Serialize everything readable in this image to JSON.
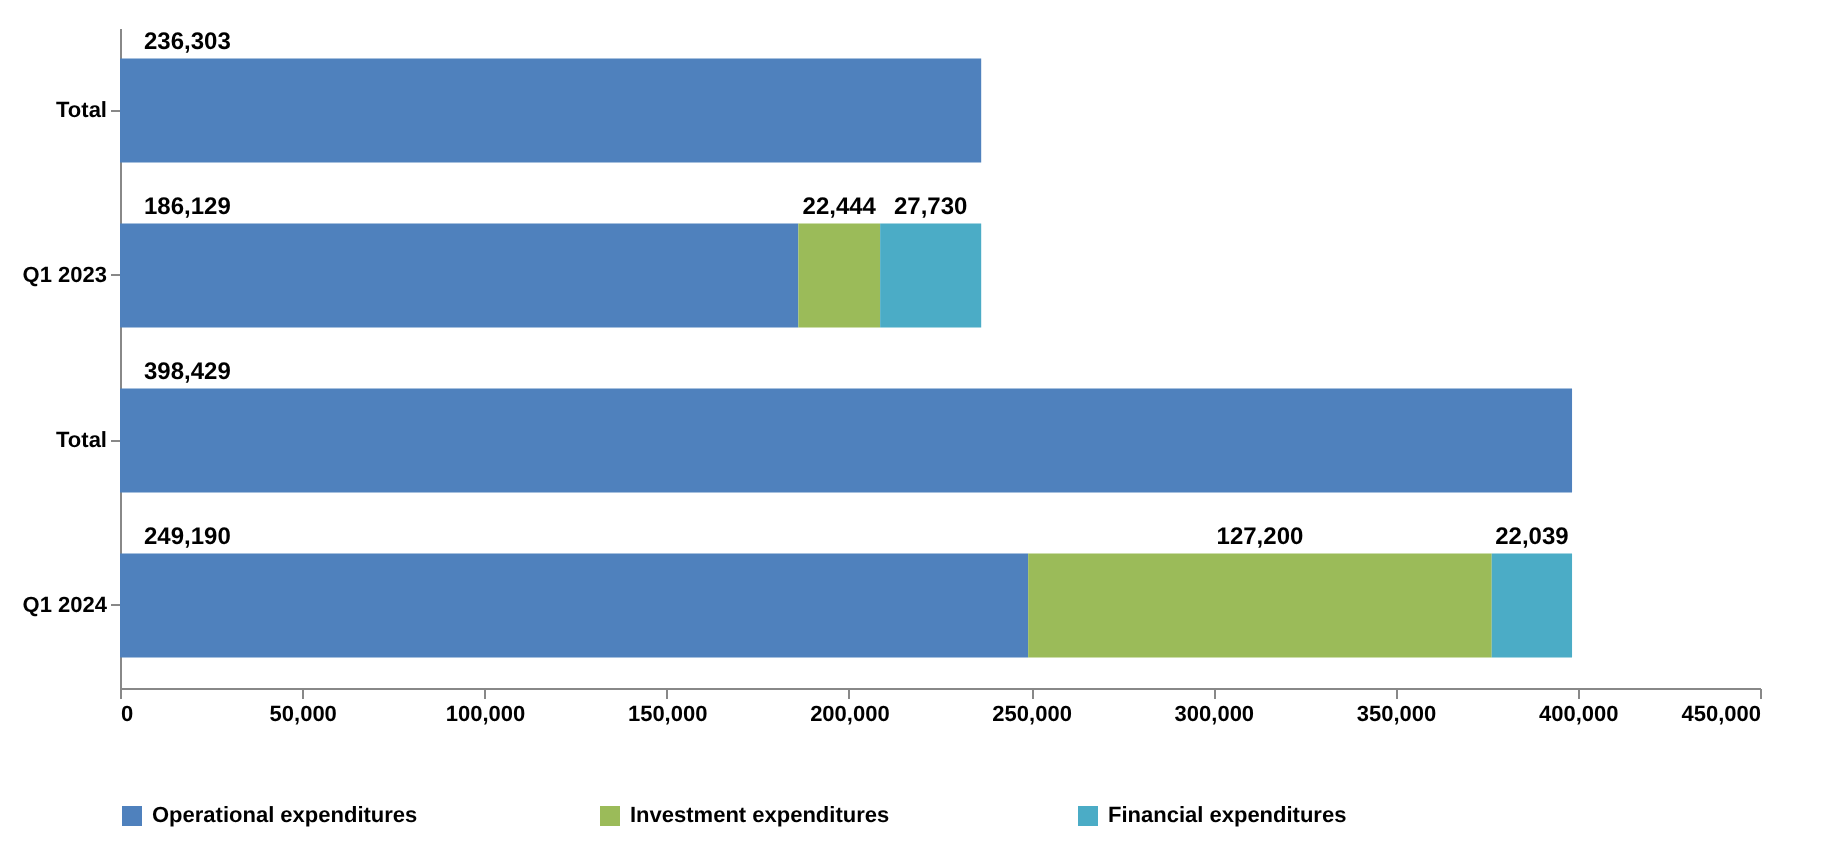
{
  "chart_data": {
    "type": "bar",
    "orientation": "horizontal",
    "stacked": true,
    "categories": [
      "Total",
      "Q1 2023",
      "Total",
      "Q1 2024"
    ],
    "series": [
      {
        "name": "Operational expenditures",
        "color": "#4f81bd",
        "values": [
          236303,
          186129,
          398429,
          249190
        ],
        "value_labels": [
          "236,303",
          "186,129",
          "398,429",
          "249,190"
        ]
      },
      {
        "name": "Investment  expenditures",
        "color": "#9bbb59",
        "values": [
          null,
          22444,
          null,
          127200
        ],
        "value_labels": [
          null,
          "22,444",
          null,
          "127,200"
        ]
      },
      {
        "name": "Financial expenditures",
        "color": "#4bacc6",
        "values": [
          null,
          27730,
          null,
          22039
        ],
        "value_labels": [
          null,
          "27,730",
          null,
          "22,039"
        ]
      }
    ],
    "xlim": [
      0,
      450000
    ],
    "xticks": [
      0,
      {
        "value": 50000,
        "label": "50,000"
      },
      {
        "value": 100000,
        "label": "100,000"
      },
      {
        "value": 150000,
        "label": "150,000"
      },
      {
        "value": 200000,
        "label": "200,000"
      },
      {
        "value": 250000,
        "label": "250,000"
      },
      {
        "value": 300000,
        "label": "300,000"
      },
      {
        "value": 350000,
        "label": "350,000"
      },
      {
        "value": 400000,
        "label": "400,000"
      },
      {
        "value": 450000,
        "label": "450,000"
      }
    ],
    "grid": false,
    "legend": "bottom"
  }
}
